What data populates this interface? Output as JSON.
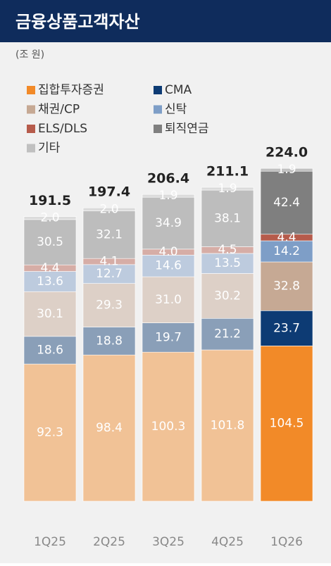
{
  "chart_data": {
    "type": "stacked-bar",
    "title": "금융상품고객자산",
    "subtitle": "(조 원)",
    "categories": [
      "1Q25",
      "2Q25",
      "3Q25",
      "4Q25",
      "1Q26"
    ],
    "series": [
      {
        "name": "집합투자증권",
        "color": "#f28a28",
        "values": [
          92.3,
          98.4,
          100.3,
          101.8,
          104.5
        ],
        "value_labels": [
          "92.3",
          "98.4",
          "100.3",
          "101.8",
          "104.5"
        ]
      },
      {
        "name": "CMA",
        "color": "#0d3b74",
        "values": [
          18.6,
          18.8,
          19.7,
          21.2,
          23.7
        ],
        "value_labels": [
          "18.6",
          "18.8",
          "19.7",
          "21.2",
          "23.7"
        ]
      },
      {
        "name": "채권/CP",
        "color": "#c6a994",
        "values": [
          30.1,
          29.3,
          31.0,
          30.2,
          32.8
        ],
        "value_labels": [
          "30.1",
          "29.3",
          "31.0",
          "30.2",
          "32.8"
        ]
      },
      {
        "name": "신탁",
        "color": "#7e9ec7",
        "values": [
          13.6,
          12.7,
          14.6,
          13.5,
          14.2
        ],
        "value_labels": [
          "13.6",
          "12.7",
          "14.6",
          "13.5",
          "14.2"
        ]
      },
      {
        "name": "ELS/DLS",
        "color": "#b65b4b",
        "values": [
          4.4,
          4.1,
          4.0,
          4.5,
          4.4
        ],
        "value_labels": [
          "4.4",
          "4.1",
          "4.0",
          "4.5",
          "4.4"
        ]
      },
      {
        "name": "퇴직연금",
        "color": "#7f7f7f",
        "values": [
          30.5,
          32.1,
          34.9,
          38.1,
          42.4
        ],
        "value_labels": [
          "30.5",
          "32.1",
          "34.9",
          "38.1",
          "42.4"
        ]
      },
      {
        "name": "기타",
        "color": "#c0c0c0",
        "values": [
          2.0,
          2.0,
          1.9,
          1.9,
          1.9
        ],
        "value_labels": [
          "2.0",
          "2.0",
          "1.9",
          "1.9",
          "1.9"
        ]
      }
    ],
    "totals": [
      191.5,
      197.4,
      206.4,
      211.1,
      224.0
    ],
    "total_labels": [
      "191.5",
      "197.4",
      "206.4",
      "211.1",
      "224.0"
    ]
  }
}
